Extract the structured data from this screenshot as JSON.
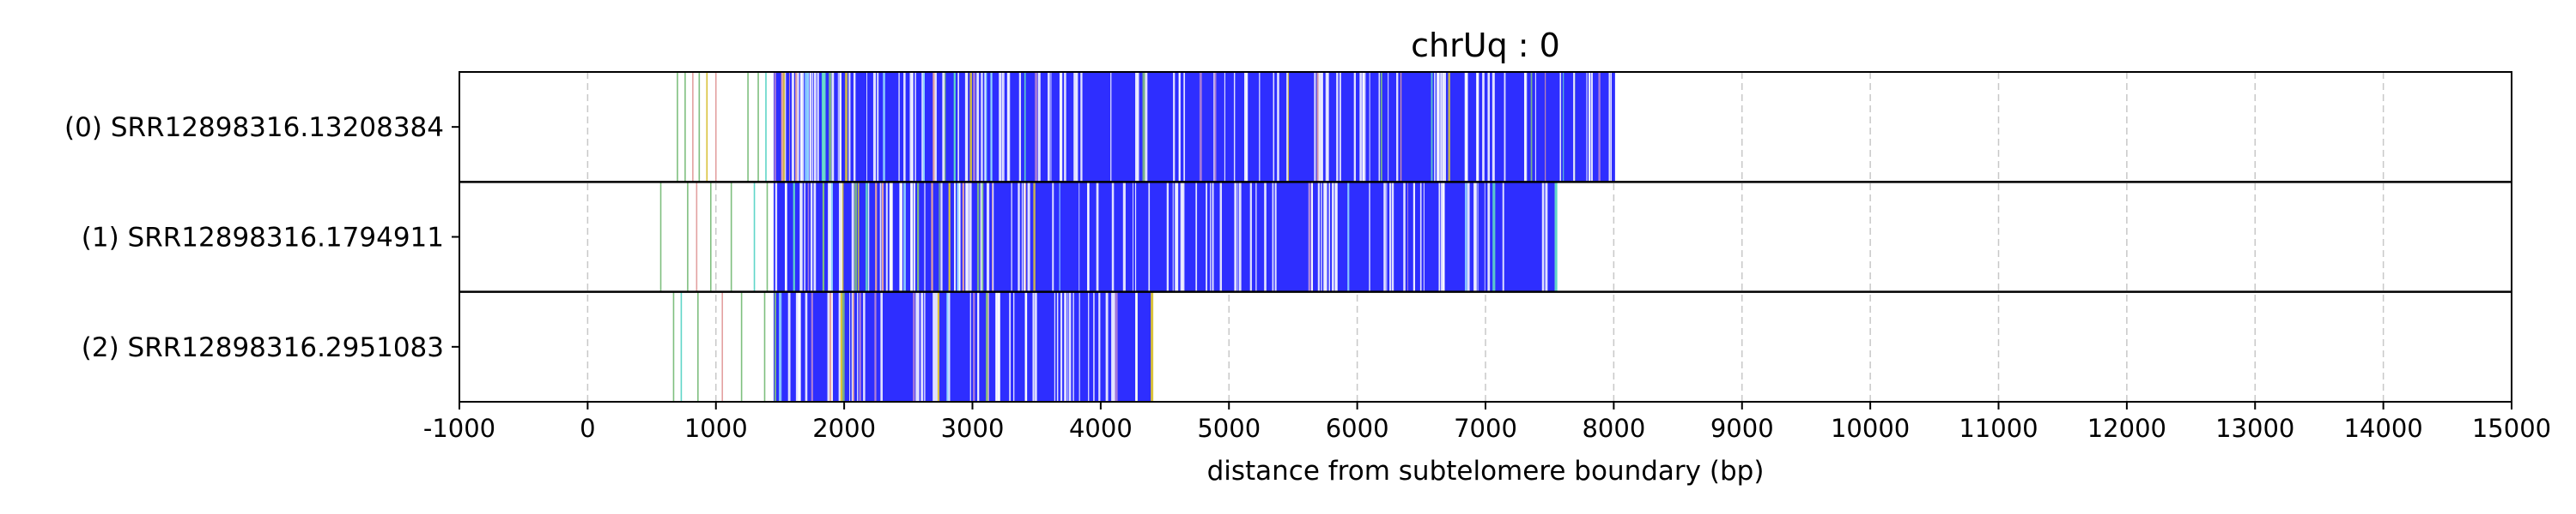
{
  "chart_data": {
    "type": "heatmap",
    "title": "chrUq : 0",
    "xlabel": "distance from subtelomere boundary (bp)",
    "ylabel": "",
    "xlim": [
      -1000,
      15000
    ],
    "xticks": [
      "-1000",
      "0",
      "1000",
      "2000",
      "3000",
      "4000",
      "5000",
      "6000",
      "7000",
      "8000",
      "9000",
      "10000",
      "11000",
      "12000",
      "13000",
      "14000",
      "15000"
    ],
    "tick_values": [
      -1000,
      0,
      1000,
      2000,
      3000,
      4000,
      5000,
      6000,
      7000,
      8000,
      9000,
      10000,
      11000,
      12000,
      13000,
      14000,
      15000
    ],
    "grid": "vertical-dashed",
    "colors": {
      "dense": "#2e2eff",
      "white_gap": "#ffffff",
      "accents": [
        "#7fbf7f",
        "#5fd6c8",
        "#e3a0a0",
        "#d9c23b",
        "#b07fd6",
        "#8fd3ff"
      ]
    },
    "reads": [
      {
        "label": "(0) SRR12898316.13208384",
        "sparse_start": 700,
        "dense_start": 1450,
        "read_end": 8000,
        "sparse_marks": [
          {
            "x": 700,
            "c": "#7fbf7f"
          },
          {
            "x": 760,
            "c": "#7fbf7f"
          },
          {
            "x": 820,
            "c": "#e3a0a0"
          },
          {
            "x": 870,
            "c": "#7fbf7f"
          },
          {
            "x": 930,
            "c": "#d9c23b"
          },
          {
            "x": 1000,
            "c": "#e3a0a0"
          },
          {
            "x": 1250,
            "c": "#7fbf7f"
          },
          {
            "x": 1330,
            "c": "#7fbf7f"
          },
          {
            "x": 1390,
            "c": "#5fd6c8"
          }
        ]
      },
      {
        "label": "(1) SRR12898316.1794911",
        "sparse_start": 570,
        "dense_start": 1450,
        "read_end": 7550,
        "sparse_marks": [
          {
            "x": 570,
            "c": "#7fbf7f"
          },
          {
            "x": 780,
            "c": "#7fbf7f"
          },
          {
            "x": 850,
            "c": "#e3a0a0"
          },
          {
            "x": 960,
            "c": "#7fbf7f"
          },
          {
            "x": 1120,
            "c": "#7fbf7f"
          },
          {
            "x": 1300,
            "c": "#5fd6c8"
          },
          {
            "x": 1400,
            "c": "#7fbf7f"
          }
        ]
      },
      {
        "label": "(2) SRR12898316.2951083",
        "sparse_start": 670,
        "dense_start": 1450,
        "read_end": 4400,
        "sparse_marks": [
          {
            "x": 670,
            "c": "#7fbf7f"
          },
          {
            "x": 730,
            "c": "#5fd6c8"
          },
          {
            "x": 860,
            "c": "#7fbf7f"
          },
          {
            "x": 1050,
            "c": "#e3a0a0"
          },
          {
            "x": 1200,
            "c": "#7fbf7f"
          },
          {
            "x": 1380,
            "c": "#7fbf7f"
          }
        ]
      }
    ]
  }
}
